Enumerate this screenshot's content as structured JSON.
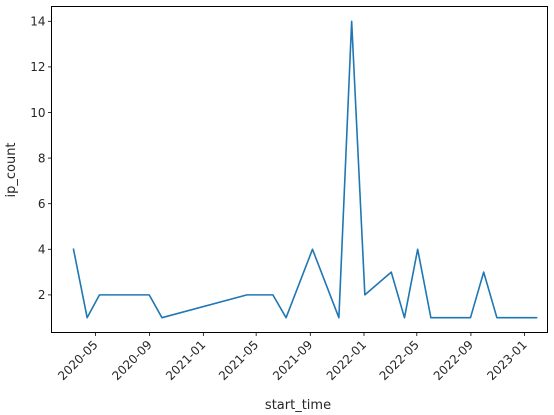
{
  "chart_data": {
    "type": "line",
    "xlabel": "start_time",
    "ylabel": "ip_count",
    "x_ticks": [
      "2020-05",
      "2020-09",
      "2021-01",
      "2021-05",
      "2021-09",
      "2022-01",
      "2022-05",
      "2022-09",
      "2023-01"
    ],
    "y_ticks": [
      "2",
      "4",
      "6",
      "8",
      "10",
      "12",
      "14"
    ],
    "xlim": [
      "2020-01-22",
      "2023-02-22"
    ],
    "ylim": [
      0.35,
      14.65
    ],
    "grid": false,
    "series": [
      {
        "color": "#1f77b4",
        "points": [
          {
            "x": "2020-03-12",
            "y": 4
          },
          {
            "x": "2020-04-12",
            "y": 1
          },
          {
            "x": "2020-05-10",
            "y": 2
          },
          {
            "x": "2020-08-31",
            "y": 2
          },
          {
            "x": "2020-09-29",
            "y": 1
          },
          {
            "x": "2021-04-10",
            "y": 2
          },
          {
            "x": "2021-06-08",
            "y": 2
          },
          {
            "x": "2021-07-08",
            "y": 1
          },
          {
            "x": "2021-09-06",
            "y": 4
          },
          {
            "x": "2021-11-05",
            "y": 1
          },
          {
            "x": "2021-12-04",
            "y": 14
          },
          {
            "x": "2022-01-03",
            "y": 2
          },
          {
            "x": "2022-03-04",
            "y": 3
          },
          {
            "x": "2022-04-03",
            "y": 1
          },
          {
            "x": "2022-05-03",
            "y": 4
          },
          {
            "x": "2022-06-02",
            "y": 1
          },
          {
            "x": "2022-08-31",
            "y": 1
          },
          {
            "x": "2022-09-30",
            "y": 3
          },
          {
            "x": "2022-10-30",
            "y": 1
          },
          {
            "x": "2023-01-28",
            "y": 1
          }
        ]
      }
    ]
  }
}
